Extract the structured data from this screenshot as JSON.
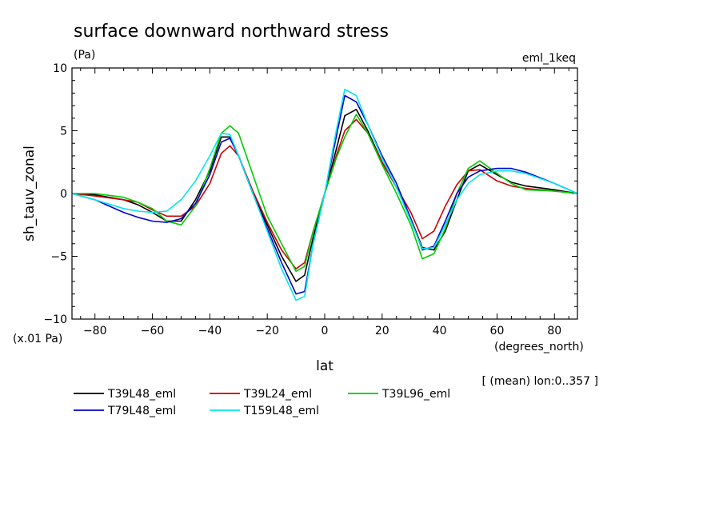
{
  "chart_data": {
    "type": "line",
    "title": "surface downward northward stress",
    "subtitle": "(Pa)",
    "experiment": "eml_1keq",
    "xlabel": "lat",
    "ylabel": "sh_tauv_zonal",
    "x_units": "(degrees_north)",
    "y_units": "(x.01 Pa)",
    "note": "[ (mean) lon:0..357 ]",
    "xlim": [
      -88,
      88
    ],
    "ylim": [
      -10,
      10
    ],
    "xticks": [
      -80,
      -60,
      -40,
      -20,
      0,
      20,
      40,
      60,
      80
    ],
    "yticks": [
      -10,
      -5,
      0,
      5,
      10
    ],
    "xtick_labels": [
      "−80",
      "−60",
      "−40",
      "−20",
      "0",
      "20",
      "40",
      "60",
      "80"
    ],
    "ytick_labels": [
      "−10",
      "−5",
      "0",
      "5",
      "10"
    ],
    "series": [
      {
        "name": "T39L48_eml",
        "color": "#000000",
        "x": [
          -88,
          -80,
          -70,
          -65,
          -60,
          -55,
          -50,
          -45,
          -40,
          -36,
          -33,
          -30,
          -25,
          -20,
          -15,
          -10,
          -7,
          -4,
          0,
          4,
          7,
          11,
          15,
          20,
          25,
          30,
          34,
          38,
          42,
          46,
          50,
          54,
          60,
          65,
          70,
          80,
          88
        ],
        "y": [
          0,
          -0.1,
          -0.5,
          -0.9,
          -1.5,
          -2.2,
          -2.2,
          -0.5,
          1.8,
          4.5,
          4.5,
          3.0,
          0,
          -2.5,
          -5.0,
          -7.0,
          -6.5,
          -3.5,
          0,
          3.5,
          6.2,
          6.7,
          5.0,
          2.5,
          0.5,
          -2.0,
          -4.3,
          -4.5,
          -3.0,
          -0.5,
          1.8,
          2.3,
          1.5,
          0.9,
          0.6,
          0.3,
          0
        ]
      },
      {
        "name": "T39L24_eml",
        "color": "#cc0000",
        "x": [
          -88,
          -80,
          -70,
          -65,
          -60,
          -55,
          -50,
          -45,
          -40,
          -36,
          -33,
          -30,
          -25,
          -20,
          -15,
          -10,
          -7,
          -4,
          0,
          4,
          7,
          11,
          15,
          20,
          25,
          30,
          34,
          38,
          42,
          46,
          50,
          54,
          60,
          65,
          70,
          80,
          88
        ],
        "y": [
          0,
          -0.2,
          -0.5,
          -0.7,
          -1.3,
          -1.8,
          -1.8,
          -1.0,
          0.8,
          3.2,
          3.8,
          3.0,
          0.2,
          -2.3,
          -4.5,
          -6.0,
          -5.5,
          -3.0,
          0,
          3.0,
          5.0,
          5.9,
          4.8,
          2.5,
          0.5,
          -1.5,
          -3.6,
          -3.0,
          -1.0,
          0.7,
          1.8,
          1.9,
          1.0,
          0.6,
          0.4,
          0.2,
          0
        ]
      },
      {
        "name": "T39L96_eml",
        "color": "#00cc00",
        "x": [
          -88,
          -80,
          -70,
          -65,
          -60,
          -55,
          -50,
          -45,
          -40,
          -36,
          -33,
          -30,
          -25,
          -20,
          -15,
          -10,
          -7,
          -4,
          0,
          4,
          7,
          11,
          15,
          20,
          25,
          30,
          34,
          38,
          42,
          46,
          50,
          54,
          60,
          65,
          70,
          80,
          88
        ],
        "y": [
          0,
          0,
          -0.3,
          -0.7,
          -1.2,
          -2.2,
          -2.5,
          -1.0,
          2.0,
          4.8,
          5.4,
          4.8,
          1.5,
          -1.8,
          -4.0,
          -6.2,
          -5.8,
          -3.0,
          0,
          2.8,
          4.5,
          6.3,
          4.8,
          2.3,
          0,
          -2.5,
          -5.2,
          -4.8,
          -2.8,
          0,
          2.0,
          2.6,
          1.6,
          0.8,
          0.3,
          0.2,
          0
        ]
      },
      {
        "name": "T79L48_eml",
        "color": "#0000cc",
        "x": [
          -88,
          -80,
          -70,
          -65,
          -60,
          -55,
          -50,
          -45,
          -40,
          -36,
          -33,
          -30,
          -25,
          -20,
          -15,
          -10,
          -7,
          -4,
          0,
          4,
          7,
          11,
          15,
          20,
          25,
          30,
          34,
          38,
          42,
          46,
          50,
          54,
          60,
          65,
          70,
          80,
          88
        ],
        "y": [
          0,
          -0.5,
          -1.5,
          -1.9,
          -2.2,
          -2.3,
          -2.0,
          -0.8,
          1.5,
          4.1,
          4.4,
          3.0,
          0,
          -2.8,
          -5.5,
          -8.0,
          -7.8,
          -4.0,
          0,
          4.5,
          7.8,
          7.3,
          5.5,
          3.0,
          0.8,
          -2.0,
          -4.5,
          -4.2,
          -2.2,
          0,
          1.3,
          1.8,
          2.0,
          2.0,
          1.7,
          0.8,
          0
        ]
      },
      {
        "name": "T159L48_eml",
        "color": "#00e5ee",
        "x": [
          -88,
          -80,
          -70,
          -65,
          -60,
          -55,
          -50,
          -45,
          -40,
          -36,
          -33,
          -30,
          -25,
          -20,
          -15,
          -10,
          -7,
          -4,
          0,
          4,
          7,
          11,
          15,
          20,
          25,
          30,
          34,
          38,
          42,
          46,
          50,
          54,
          60,
          65,
          70,
          80,
          88
        ],
        "y": [
          0,
          -0.5,
          -1.2,
          -1.4,
          -1.5,
          -1.4,
          -0.5,
          1.0,
          3.0,
          4.8,
          4.7,
          3.0,
          0,
          -3.0,
          -6.0,
          -8.5,
          -8.2,
          -4.0,
          0,
          5.0,
          8.3,
          7.8,
          5.5,
          2.8,
          0.5,
          -2.2,
          -4.4,
          -4.3,
          -2.5,
          -0.5,
          0.8,
          1.5,
          1.8,
          1.8,
          1.6,
          0.8,
          0
        ]
      }
    ],
    "legend_placement": "bottom-left"
  }
}
